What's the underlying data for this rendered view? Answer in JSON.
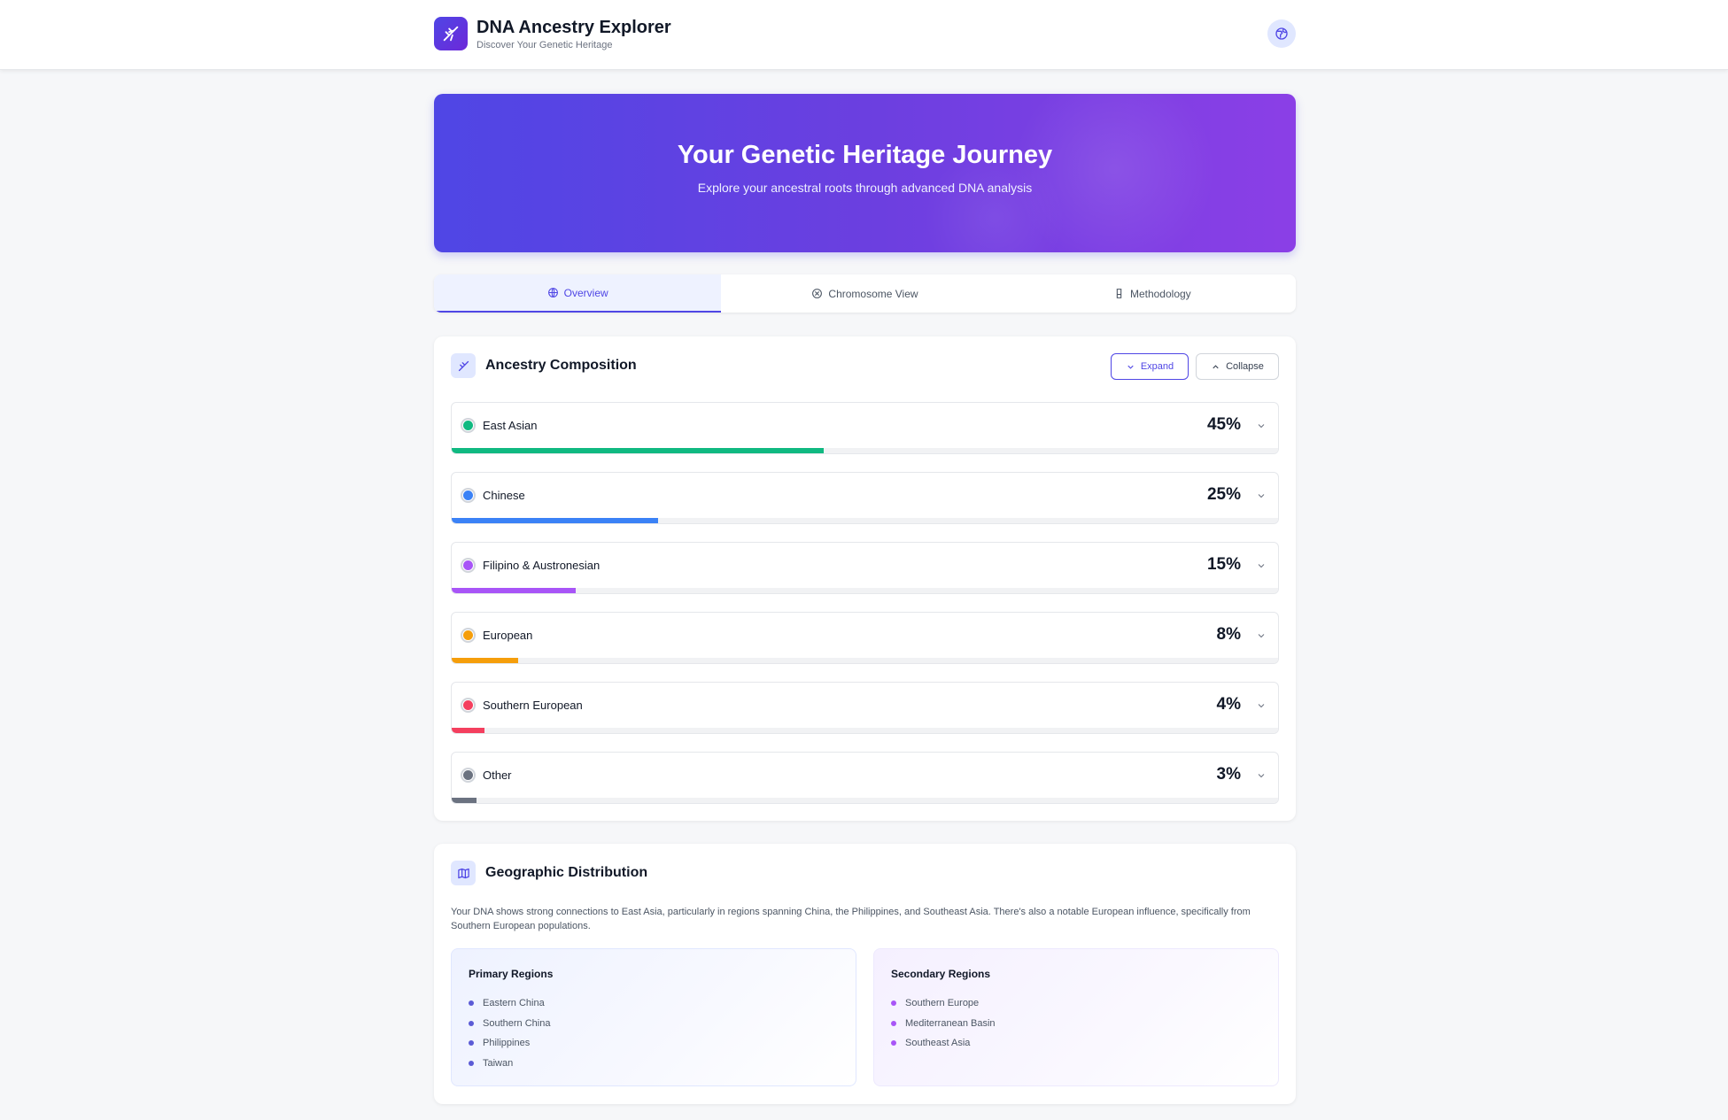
{
  "header": {
    "title": "DNA Ancestry Explorer",
    "subtitle": "Discover Your Genetic Heritage",
    "logo_icon": "dna-icon",
    "profile_icon": "globe-icon"
  },
  "hero": {
    "title": "Your Genetic Heritage Journey",
    "subtitle": "Explore your ancestral roots through advanced DNA analysis"
  },
  "tabs": [
    {
      "label": "Overview",
      "icon": "globe-icon",
      "active": true
    },
    {
      "label": "Chromosome View",
      "icon": "chromosome-icon",
      "active": false
    },
    {
      "label": "Methodology",
      "icon": "flask-icon",
      "active": false
    }
  ],
  "composition": {
    "title": "Ancestry Composition",
    "expand_label": "Expand",
    "collapse_label": "Collapse",
    "items": [
      {
        "label": "East Asian",
        "percent_text": "45%",
        "value": 45,
        "color": "#10b981"
      },
      {
        "label": "Chinese",
        "percent_text": "25%",
        "value": 25,
        "color": "#3b82f6"
      },
      {
        "label": "Filipino & Austronesian",
        "percent_text": "15%",
        "value": 15,
        "color": "#a855f7"
      },
      {
        "label": "European",
        "percent_text": "8%",
        "value": 8,
        "color": "#f59e0b"
      },
      {
        "label": "Southern European",
        "percent_text": "4%",
        "value": 4,
        "color": "#f43f5e"
      },
      {
        "label": "Other",
        "percent_text": "3%",
        "value": 3,
        "color": "#6b7280"
      }
    ]
  },
  "geography": {
    "title": "Geographic Distribution",
    "description": "Your DNA shows strong connections to East Asia, particularly in regions spanning China, the Philippines, and Southeast Asia. There's also a notable European influence, specifically from Southern European populations.",
    "primary": {
      "title": "Primary Regions",
      "items": [
        "Eastern China",
        "Southern China",
        "Philippines",
        "Taiwan"
      ]
    },
    "secondary": {
      "title": "Secondary Regions",
      "items": [
        "Southern Europe",
        "Mediterranean Basin",
        "Southeast Asia"
      ]
    }
  },
  "colors": {
    "accent": "#4f46e5",
    "accent_purple": "#9333ea"
  }
}
